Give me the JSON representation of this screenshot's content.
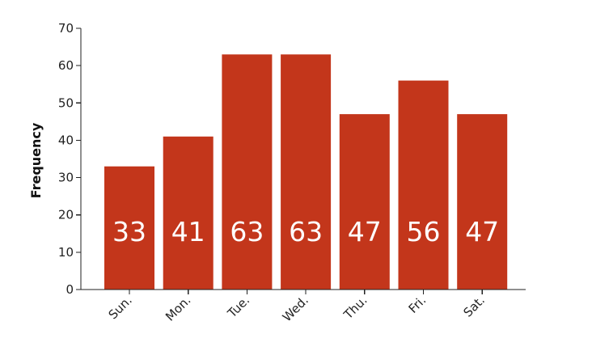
{
  "chart_data": {
    "type": "bar",
    "categories": [
      "Sun.",
      "Mon.",
      "Tue.",
      "Wed.",
      "Thu.",
      "Fri.",
      "Sat."
    ],
    "values": [
      33,
      41,
      63,
      63,
      47,
      56,
      47
    ],
    "data_labels": [
      "33",
      "41",
      "63",
      "63",
      "47",
      "56",
      "47"
    ],
    "xlabel": "",
    "ylabel": "Frequency",
    "ylim": [
      0,
      70
    ],
    "y_ticks": [
      0,
      10,
      20,
      30,
      40,
      50,
      60,
      70
    ],
    "bar_color": "#c3361b",
    "grid": false,
    "x_tick_label_rotation": "45 degrees counter-clockwise",
    "data_label_placement": "inside bar, near bottom",
    "legend": "none"
  }
}
